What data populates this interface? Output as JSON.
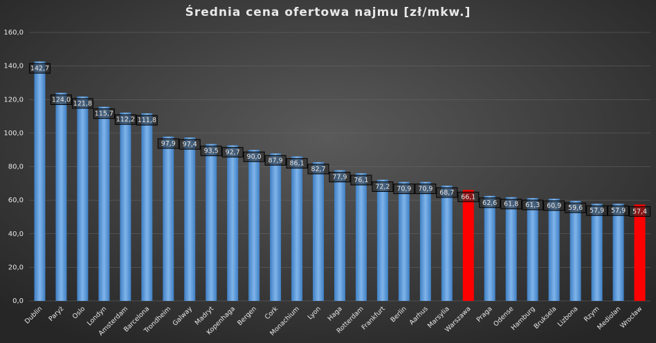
{
  "chart_data": {
    "type": "bar",
    "title": "Średnia cena ofertowa najmu [zł/mkw.]",
    "categories": [
      "Dublin",
      "Paryż",
      "Oslo",
      "Londyn",
      "Amsterdam",
      "Barcelona",
      "Trondheim",
      "Galway",
      "Madryt",
      "Kopenhaga",
      "Bergen",
      "Cork",
      "Monachium",
      "Lyon",
      "Haga",
      "Rotterdam",
      "Frankfurt",
      "Berlin",
      "Aarhus",
      "Marsylia",
      "Warszawa",
      "Praga",
      "Odense",
      "Hamburg",
      "Bruksela",
      "Lizbona",
      "Rzym",
      "Mediolan",
      "Wrocław"
    ],
    "values": [
      142.7,
      124.0,
      121.8,
      115.7,
      112.2,
      111.8,
      97.9,
      97.4,
      93.5,
      92.7,
      90.0,
      87.9,
      86.1,
      82.7,
      77.9,
      76.1,
      72.2,
      70.9,
      70.9,
      68.7,
      66.1,
      62.6,
      61.8,
      61.3,
      60.9,
      59.6,
      57.9,
      57.9,
      57.4
    ],
    "value_labels": [
      "142,7",
      "124,0",
      "121,8",
      "115,7",
      "112,2",
      "111,8",
      "97,9",
      "97,4",
      "93,5",
      "92,7",
      "90,0",
      "87,9",
      "86,1",
      "82,7",
      "77,9",
      "76,1",
      "72,2",
      "70,9",
      "70,9",
      "68,7",
      "66,1",
      "62,6",
      "61,8",
      "61,3",
      "60,9",
      "59,6",
      "57,9",
      "57,9",
      "57,4"
    ],
    "colors": [
      "#5b9bd5",
      "#5b9bd5",
      "#5b9bd5",
      "#5b9bd5",
      "#5b9bd5",
      "#5b9bd5",
      "#5b9bd5",
      "#5b9bd5",
      "#5b9bd5",
      "#5b9bd5",
      "#5b9bd5",
      "#5b9bd5",
      "#5b9bd5",
      "#5b9bd5",
      "#5b9bd5",
      "#5b9bd5",
      "#5b9bd5",
      "#5b9bd5",
      "#5b9bd5",
      "#5b9bd5",
      "#ff0000",
      "#5b9bd5",
      "#5b9bd5",
      "#5b9bd5",
      "#5b9bd5",
      "#5b9bd5",
      "#5b9bd5",
      "#5b9bd5",
      "#ff0000"
    ],
    "ylim": [
      0,
      160
    ],
    "yticks": [
      {
        "value": 0,
        "label": "0,0"
      },
      {
        "value": 20,
        "label": "20,0"
      },
      {
        "value": 40,
        "label": "40,0"
      },
      {
        "value": 60,
        "label": "60,0"
      },
      {
        "value": 80,
        "label": "80,0"
      },
      {
        "value": 100,
        "label": "100,0"
      },
      {
        "value": 120,
        "label": "120,0"
      },
      {
        "value": 140,
        "label": "140,0"
      },
      {
        "value": 160,
        "label": "160,0"
      }
    ],
    "grid": true
  }
}
